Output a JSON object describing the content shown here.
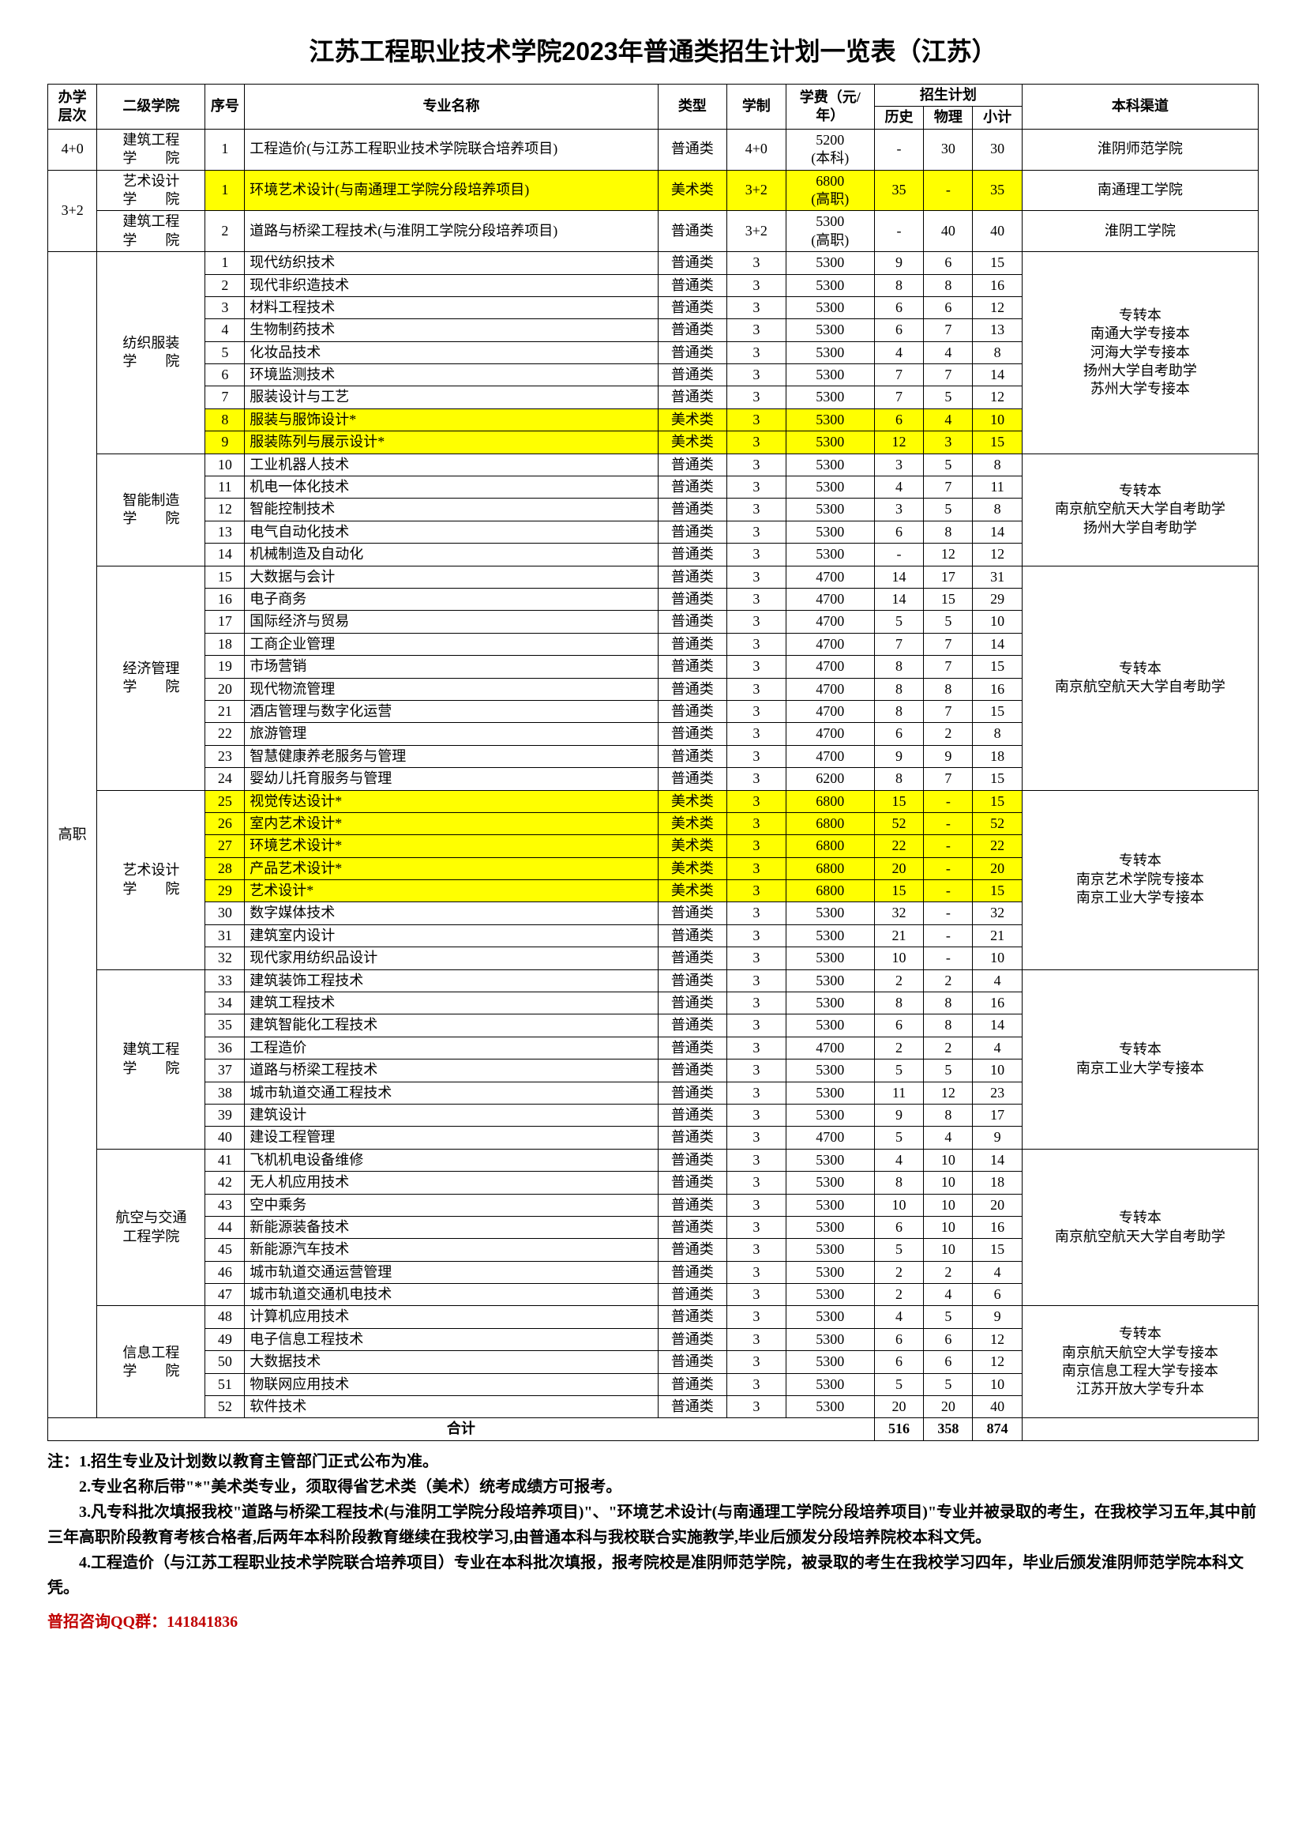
{
  "title": "江苏工程职业技术学院2023年普通类招生计划一览表（江苏）",
  "headers": {
    "level": "办学层次",
    "college": "二级学院",
    "seq": "序号",
    "major": "专业名称",
    "type": "类型",
    "xuezhi": "学制",
    "fee": "学费（元/年）",
    "plan": "招生计划",
    "lishi": "历史",
    "wuli": "物理",
    "xiaoji": "小计",
    "channel": "本科渠道"
  },
  "groups": [
    {
      "level": "4+0",
      "college": "建筑工程\n学　　院",
      "channel": "淮阴师范学院",
      "rows": [
        {
          "seq": "1",
          "major": "工程造价(与江苏工程职业技术学院联合培养项目)",
          "type": "普通类",
          "xz": "4+0",
          "fee": "5200\n(本科)",
          "ls": "-",
          "wl": "30",
          "xj": "30",
          "hl": false
        }
      ]
    },
    {
      "level": "3+2",
      "collegeBlocks": [
        {
          "college": "艺术设计\n学　　院",
          "channel": "南通理工学院",
          "rows": [
            {
              "seq": "1",
              "major": "环境艺术设计(与南通理工学院分段培养项目)",
              "type": "美术类",
              "xz": "3+2",
              "fee": "6800\n(高职)",
              "ls": "35",
              "wl": "-",
              "xj": "35",
              "hl": true
            }
          ]
        },
        {
          "college": "建筑工程\n学　　院",
          "channel": "淮阴工学院",
          "rows": [
            {
              "seq": "2",
              "major": "道路与桥梁工程技术(与淮阴工学院分段培养项目)",
              "type": "普通类",
              "xz": "3+2",
              "fee": "5300\n(高职)",
              "ls": "-",
              "wl": "40",
              "xj": "40",
              "hl": false
            }
          ]
        }
      ]
    },
    {
      "level": "高职",
      "collegeBlocks": [
        {
          "college": "纺织服装\n学　　院",
          "channel": "专转本\n南通大学专接本\n河海大学专接本\n扬州大学自考助学\n苏州大学专接本",
          "rows": [
            {
              "seq": "1",
              "major": "现代纺织技术",
              "type": "普通类",
              "xz": "3",
              "fee": "5300",
              "ls": "9",
              "wl": "6",
              "xj": "15",
              "hl": false
            },
            {
              "seq": "2",
              "major": "现代非织造技术",
              "type": "普通类",
              "xz": "3",
              "fee": "5300",
              "ls": "8",
              "wl": "8",
              "xj": "16",
              "hl": false
            },
            {
              "seq": "3",
              "major": "材料工程技术",
              "type": "普通类",
              "xz": "3",
              "fee": "5300",
              "ls": "6",
              "wl": "6",
              "xj": "12",
              "hl": false
            },
            {
              "seq": "4",
              "major": "生物制药技术",
              "type": "普通类",
              "xz": "3",
              "fee": "5300",
              "ls": "6",
              "wl": "7",
              "xj": "13",
              "hl": false
            },
            {
              "seq": "5",
              "major": "化妆品技术",
              "type": "普通类",
              "xz": "3",
              "fee": "5300",
              "ls": "4",
              "wl": "4",
              "xj": "8",
              "hl": false
            },
            {
              "seq": "6",
              "major": "环境监测技术",
              "type": "普通类",
              "xz": "3",
              "fee": "5300",
              "ls": "7",
              "wl": "7",
              "xj": "14",
              "hl": false
            },
            {
              "seq": "7",
              "major": "服装设计与工艺",
              "type": "普通类",
              "xz": "3",
              "fee": "5300",
              "ls": "7",
              "wl": "5",
              "xj": "12",
              "hl": false
            },
            {
              "seq": "8",
              "major": "服装与服饰设计*",
              "type": "美术类",
              "xz": "3",
              "fee": "5300",
              "ls": "6",
              "wl": "4",
              "xj": "10",
              "hl": true
            },
            {
              "seq": "9",
              "major": "服装陈列与展示设计*",
              "type": "美术类",
              "xz": "3",
              "fee": "5300",
              "ls": "12",
              "wl": "3",
              "xj": "15",
              "hl": true
            }
          ]
        },
        {
          "college": "智能制造\n学　　院",
          "channel": "专转本\n南京航空航天大学自考助学\n扬州大学自考助学",
          "rows": [
            {
              "seq": "10",
              "major": "工业机器人技术",
              "type": "普通类",
              "xz": "3",
              "fee": "5300",
              "ls": "3",
              "wl": "5",
              "xj": "8",
              "hl": false
            },
            {
              "seq": "11",
              "major": "机电一体化技术",
              "type": "普通类",
              "xz": "3",
              "fee": "5300",
              "ls": "4",
              "wl": "7",
              "xj": "11",
              "hl": false
            },
            {
              "seq": "12",
              "major": "智能控制技术",
              "type": "普通类",
              "xz": "3",
              "fee": "5300",
              "ls": "3",
              "wl": "5",
              "xj": "8",
              "hl": false
            },
            {
              "seq": "13",
              "major": "电气自动化技术",
              "type": "普通类",
              "xz": "3",
              "fee": "5300",
              "ls": "6",
              "wl": "8",
              "xj": "14",
              "hl": false
            },
            {
              "seq": "14",
              "major": "机械制造及自动化",
              "type": "普通类",
              "xz": "3",
              "fee": "5300",
              "ls": "-",
              "wl": "12",
              "xj": "12",
              "hl": false
            }
          ]
        },
        {
          "college": "经济管理\n学　　院",
          "channel": "专转本\n南京航空航天大学自考助学",
          "rows": [
            {
              "seq": "15",
              "major": "大数据与会计",
              "type": "普通类",
              "xz": "3",
              "fee": "4700",
              "ls": "14",
              "wl": "17",
              "xj": "31",
              "hl": false
            },
            {
              "seq": "16",
              "major": "电子商务",
              "type": "普通类",
              "xz": "3",
              "fee": "4700",
              "ls": "14",
              "wl": "15",
              "xj": "29",
              "hl": false
            },
            {
              "seq": "17",
              "major": "国际经济与贸易",
              "type": "普通类",
              "xz": "3",
              "fee": "4700",
              "ls": "5",
              "wl": "5",
              "xj": "10",
              "hl": false
            },
            {
              "seq": "18",
              "major": "工商企业管理",
              "type": "普通类",
              "xz": "3",
              "fee": "4700",
              "ls": "7",
              "wl": "7",
              "xj": "14",
              "hl": false
            },
            {
              "seq": "19",
              "major": "市场营销",
              "type": "普通类",
              "xz": "3",
              "fee": "4700",
              "ls": "8",
              "wl": "7",
              "xj": "15",
              "hl": false
            },
            {
              "seq": "20",
              "major": "现代物流管理",
              "type": "普通类",
              "xz": "3",
              "fee": "4700",
              "ls": "8",
              "wl": "8",
              "xj": "16",
              "hl": false
            },
            {
              "seq": "21",
              "major": "酒店管理与数字化运营",
              "type": "普通类",
              "xz": "3",
              "fee": "4700",
              "ls": "8",
              "wl": "7",
              "xj": "15",
              "hl": false
            },
            {
              "seq": "22",
              "major": "旅游管理",
              "type": "普通类",
              "xz": "3",
              "fee": "4700",
              "ls": "6",
              "wl": "2",
              "xj": "8",
              "hl": false
            },
            {
              "seq": "23",
              "major": "智慧健康养老服务与管理",
              "type": "普通类",
              "xz": "3",
              "fee": "4700",
              "ls": "9",
              "wl": "9",
              "xj": "18",
              "hl": false
            },
            {
              "seq": "24",
              "major": "婴幼儿托育服务与管理",
              "type": "普通类",
              "xz": "3",
              "fee": "6200",
              "ls": "8",
              "wl": "7",
              "xj": "15",
              "hl": false
            }
          ]
        },
        {
          "college": "艺术设计\n学　　院",
          "channel": "专转本\n南京艺术学院专接本\n南京工业大学专接本",
          "rows": [
            {
              "seq": "25",
              "major": "视觉传达设计*",
              "type": "美术类",
              "xz": "3",
              "fee": "6800",
              "ls": "15",
              "wl": "-",
              "xj": "15",
              "hl": true
            },
            {
              "seq": "26",
              "major": "室内艺术设计*",
              "type": "美术类",
              "xz": "3",
              "fee": "6800",
              "ls": "52",
              "wl": "-",
              "xj": "52",
              "hl": true
            },
            {
              "seq": "27",
              "major": "环境艺术设计*",
              "type": "美术类",
              "xz": "3",
              "fee": "6800",
              "ls": "22",
              "wl": "-",
              "xj": "22",
              "hl": true
            },
            {
              "seq": "28",
              "major": "产品艺术设计*",
              "type": "美术类",
              "xz": "3",
              "fee": "6800",
              "ls": "20",
              "wl": "-",
              "xj": "20",
              "hl": true
            },
            {
              "seq": "29",
              "major": "艺术设计*",
              "type": "美术类",
              "xz": "3",
              "fee": "6800",
              "ls": "15",
              "wl": "-",
              "xj": "15",
              "hl": true
            },
            {
              "seq": "30",
              "major": "数字媒体技术",
              "type": "普通类",
              "xz": "3",
              "fee": "5300",
              "ls": "32",
              "wl": "-",
              "xj": "32",
              "hl": false
            },
            {
              "seq": "31",
              "major": "建筑室内设计",
              "type": "普通类",
              "xz": "3",
              "fee": "5300",
              "ls": "21",
              "wl": "-",
              "xj": "21",
              "hl": false
            },
            {
              "seq": "32",
              "major": "现代家用纺织品设计",
              "type": "普通类",
              "xz": "3",
              "fee": "5300",
              "ls": "10",
              "wl": "-",
              "xj": "10",
              "hl": false
            }
          ]
        },
        {
          "college": "建筑工程\n学　　院",
          "channel": "专转本\n南京工业大学专接本",
          "rows": [
            {
              "seq": "33",
              "major": "建筑装饰工程技术",
              "type": "普通类",
              "xz": "3",
              "fee": "5300",
              "ls": "2",
              "wl": "2",
              "xj": "4",
              "hl": false
            },
            {
              "seq": "34",
              "major": "建筑工程技术",
              "type": "普通类",
              "xz": "3",
              "fee": "5300",
              "ls": "8",
              "wl": "8",
              "xj": "16",
              "hl": false
            },
            {
              "seq": "35",
              "major": "建筑智能化工程技术",
              "type": "普通类",
              "xz": "3",
              "fee": "5300",
              "ls": "6",
              "wl": "8",
              "xj": "14",
              "hl": false
            },
            {
              "seq": "36",
              "major": "工程造价",
              "type": "普通类",
              "xz": "3",
              "fee": "4700",
              "ls": "2",
              "wl": "2",
              "xj": "4",
              "hl": false
            },
            {
              "seq": "37",
              "major": "道路与桥梁工程技术",
              "type": "普通类",
              "xz": "3",
              "fee": "5300",
              "ls": "5",
              "wl": "5",
              "xj": "10",
              "hl": false
            },
            {
              "seq": "38",
              "major": "城市轨道交通工程技术",
              "type": "普通类",
              "xz": "3",
              "fee": "5300",
              "ls": "11",
              "wl": "12",
              "xj": "23",
              "hl": false
            },
            {
              "seq": "39",
              "major": "建筑设计",
              "type": "普通类",
              "xz": "3",
              "fee": "5300",
              "ls": "9",
              "wl": "8",
              "xj": "17",
              "hl": false
            },
            {
              "seq": "40",
              "major": "建设工程管理",
              "type": "普通类",
              "xz": "3",
              "fee": "4700",
              "ls": "5",
              "wl": "4",
              "xj": "9",
              "hl": false
            }
          ]
        },
        {
          "college": "航空与交通\n工程学院",
          "channel": "专转本\n南京航空航天大学自考助学",
          "rows": [
            {
              "seq": "41",
              "major": "飞机机电设备维修",
              "type": "普通类",
              "xz": "3",
              "fee": "5300",
              "ls": "4",
              "wl": "10",
              "xj": "14",
              "hl": false
            },
            {
              "seq": "42",
              "major": "无人机应用技术",
              "type": "普通类",
              "xz": "3",
              "fee": "5300",
              "ls": "8",
              "wl": "10",
              "xj": "18",
              "hl": false
            },
            {
              "seq": "43",
              "major": "空中乘务",
              "type": "普通类",
              "xz": "3",
              "fee": "5300",
              "ls": "10",
              "wl": "10",
              "xj": "20",
              "hl": false
            },
            {
              "seq": "44",
              "major": "新能源装备技术",
              "type": "普通类",
              "xz": "3",
              "fee": "5300",
              "ls": "6",
              "wl": "10",
              "xj": "16",
              "hl": false
            },
            {
              "seq": "45",
              "major": "新能源汽车技术",
              "type": "普通类",
              "xz": "3",
              "fee": "5300",
              "ls": "5",
              "wl": "10",
              "xj": "15",
              "hl": false
            },
            {
              "seq": "46",
              "major": "城市轨道交通运营管理",
              "type": "普通类",
              "xz": "3",
              "fee": "5300",
              "ls": "2",
              "wl": "2",
              "xj": "4",
              "hl": false
            },
            {
              "seq": "47",
              "major": "城市轨道交通机电技术",
              "type": "普通类",
              "xz": "3",
              "fee": "5300",
              "ls": "2",
              "wl": "4",
              "xj": "6",
              "hl": false
            }
          ]
        },
        {
          "college": "信息工程\n学　　院",
          "channel": "专转本\n南京航天航空大学专接本\n南京信息工程大学专接本\n江苏开放大学专升本",
          "rows": [
            {
              "seq": "48",
              "major": "计算机应用技术",
              "type": "普通类",
              "xz": "3",
              "fee": "5300",
              "ls": "4",
              "wl": "5",
              "xj": "9",
              "hl": false
            },
            {
              "seq": "49",
              "major": "电子信息工程技术",
              "type": "普通类",
              "xz": "3",
              "fee": "5300",
              "ls": "6",
              "wl": "6",
              "xj": "12",
              "hl": false
            },
            {
              "seq": "50",
              "major": "大数据技术",
              "type": "普通类",
              "xz": "3",
              "fee": "5300",
              "ls": "6",
              "wl": "6",
              "xj": "12",
              "hl": false
            },
            {
              "seq": "51",
              "major": "物联网应用技术",
              "type": "普通类",
              "xz": "3",
              "fee": "5300",
              "ls": "5",
              "wl": "5",
              "xj": "10",
              "hl": false
            },
            {
              "seq": "52",
              "major": "软件技术",
              "type": "普通类",
              "xz": "3",
              "fee": "5300",
              "ls": "20",
              "wl": "20",
              "xj": "40",
              "hl": false
            }
          ]
        }
      ]
    }
  ],
  "total": {
    "label": "合计",
    "ls": "516",
    "wl": "358",
    "xj": "874"
  },
  "notes": [
    "注：1.招生专业及计划数以教育主管部门正式公布为准。",
    "　　2.专业名称后带\"*\"美术类专业，须取得省艺术类（美术）统考成绩方可报考。",
    "　　3.凡专科批次填报我校\"道路与桥梁工程技术(与淮阴工学院分段培养项目)\"、\"环境艺术设计(与南通理工学院分段培养项目)\"专业并被录取的考生，在我校学习五年,其中前三年高职阶段教育考核合格者,后两年本科阶段教育继续在我校学习,由普通本科与我校联合实施教学,毕业后颁发分段培养院校本科文凭。",
    "　　4.工程造价（与江苏工程职业技术学院联合培养项目）专业在本科批次填报，报考院校是准阴师范学院，被录取的考生在我校学习四年，毕业后颁发淮阴师范学院本科文凭。"
  ],
  "qq": "普招咨询QQ群：141841836"
}
